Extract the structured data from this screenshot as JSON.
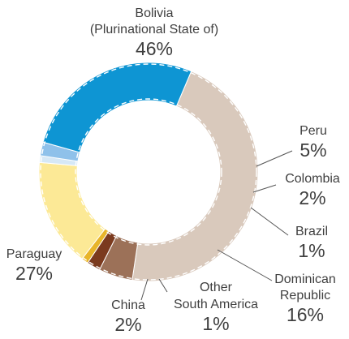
{
  "chart_data": {
    "type": "pie",
    "style": "donut",
    "title": "",
    "slices": [
      {
        "key": "bolivia",
        "label_lines": [
          "Bolivia",
          "(Plurinational State of)"
        ],
        "value_label": "46%",
        "value": 46,
        "color": "#d9c9bc"
      },
      {
        "key": "peru",
        "label_lines": [
          "Peru"
        ],
        "value_label": "5%",
        "value": 5,
        "color": "#9c7158"
      },
      {
        "key": "colombia",
        "label_lines": [
          "Colombia"
        ],
        "value_label": "2%",
        "value": 2,
        "color": "#7b3a1e"
      },
      {
        "key": "brazil",
        "label_lines": [
          "Brazil"
        ],
        "value_label": "1%",
        "value": 1,
        "color": "#e8b52a"
      },
      {
        "key": "dominican-republic",
        "label_lines": [
          "Dominican",
          "Republic"
        ],
        "value_label": "16%",
        "value": 16,
        "color": "#fce996"
      },
      {
        "key": "other-south-america",
        "label_lines": [
          "Other",
          "South America"
        ],
        "value_label": "1%",
        "value": 1,
        "color": "#d6e8f6"
      },
      {
        "key": "china",
        "label_lines": [
          "China"
        ],
        "value_label": "2%",
        "value": 2,
        "color": "#8fc1ea"
      },
      {
        "key": "paraguay",
        "label_lines": [
          "Paraguay"
        ],
        "value_label": "27%",
        "value": 27,
        "color": "#0e95d3"
      }
    ],
    "start_angle_deg": -67,
    "dashed_outline": true
  }
}
